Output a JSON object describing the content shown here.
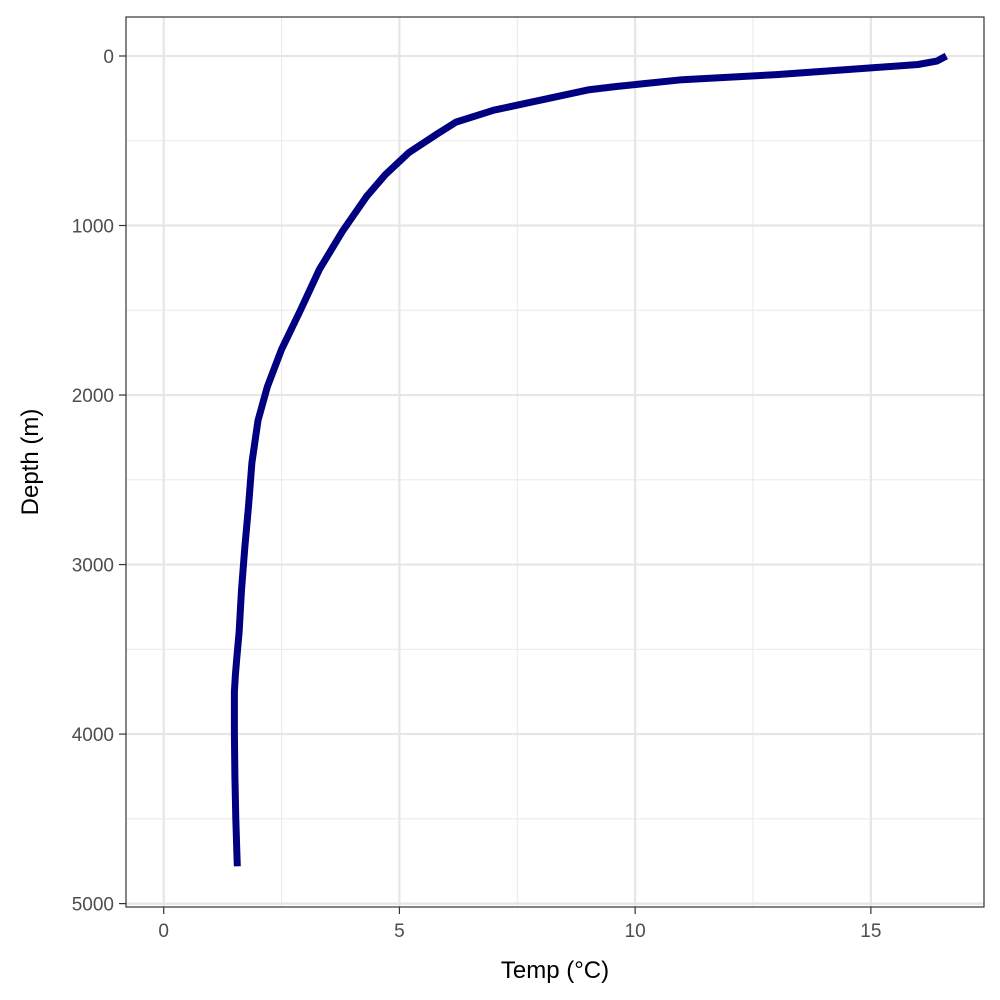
{
  "chart_data": {
    "type": "line",
    "title": "",
    "xlabel": "Temp (°C)",
    "ylabel": "Depth (m)",
    "xlim": [
      -0.8,
      17.4
    ],
    "ylim": [
      5020,
      -230
    ],
    "y_reversed": true,
    "x_ticks": [
      0,
      5,
      10,
      15
    ],
    "x_tick_labels": [
      "0",
      "5",
      "10",
      "15"
    ],
    "y_ticks": [
      0,
      1000,
      2000,
      3000,
      4000,
      5000
    ],
    "y_tick_labels": [
      "0",
      "1000",
      "2000",
      "3000",
      "4000",
      "5000"
    ],
    "grid": true,
    "line_color": "#000080",
    "series": [
      {
        "x": [
          16.6,
          16.4,
          16.0,
          15.0,
          13.0,
          11.0,
          9.6,
          9.0,
          8.0,
          7.0,
          6.2,
          5.8,
          5.2,
          4.7,
          4.3,
          3.8,
          3.3,
          2.9,
          2.5,
          2.2,
          2.0,
          1.87,
          1.8,
          1.72,
          1.65,
          1.6,
          1.55,
          1.52,
          1.5,
          1.5,
          1.51,
          1.53,
          1.56
        ],
        "y": [
          0,
          30,
          50,
          70,
          110,
          140,
          180,
          200,
          260,
          320,
          390,
          460,
          570,
          700,
          830,
          1030,
          1260,
          1500,
          1730,
          1950,
          2150,
          2400,
          2650,
          2900,
          3150,
          3400,
          3550,
          3650,
          3750,
          4000,
          4250,
          4500,
          4780
        ]
      }
    ]
  }
}
